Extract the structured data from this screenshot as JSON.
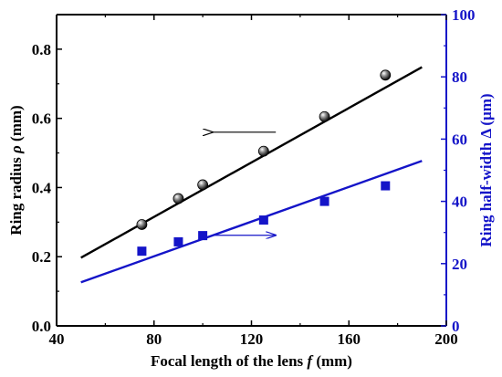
{
  "chart_data": {
    "type": "scatter",
    "title": "",
    "x_axis": {
      "label_parts": [
        "Focal length of the lens ",
        "f",
        " (mm)"
      ],
      "range": [
        40,
        200
      ],
      "ticks": [
        40,
        80,
        120,
        160,
        200
      ]
    },
    "y_left_axis": {
      "label_parts": [
        "Ring radius ",
        "ρ",
        " (mm)"
      ],
      "range": [
        0.0,
        0.9
      ],
      "ticks": [
        "0.0",
        "0.2",
        "0.4",
        "0.6",
        "0.8"
      ],
      "color": "#000000"
    },
    "y_right_axis": {
      "label": "Ring half-width Δ (μm)",
      "range": [
        0,
        100
      ],
      "ticks": [
        "0",
        "20",
        "40",
        "60",
        "80",
        "100"
      ],
      "color": "#1414c8"
    },
    "series": [
      {
        "axis": "left",
        "marker": "sphere",
        "color": "#000000",
        "points": [
          [
            75,
            0.293
          ],
          [
            90,
            0.368
          ],
          [
            100,
            0.408
          ],
          [
            125,
            0.505
          ],
          [
            150,
            0.605
          ],
          [
            175,
            0.725
          ]
        ],
        "fit_line": [
          [
            50,
            0.197
          ],
          [
            190,
            0.748
          ]
        ]
      },
      {
        "axis": "right",
        "marker": "square",
        "color": "#1414c8",
        "points": [
          [
            75,
            24
          ],
          [
            90,
            27
          ],
          [
            100,
            29
          ],
          [
            125,
            34
          ],
          [
            150,
            40
          ],
          [
            175,
            45
          ]
        ],
        "fit_line": [
          [
            50,
            14
          ],
          [
            190,
            53
          ]
        ]
      }
    ],
    "annotations": [
      {
        "type": "arrow",
        "direction": "left",
        "color": "#000000",
        "from": [
          130,
          0.56
        ],
        "to": [
          104,
          0.56
        ]
      },
      {
        "type": "arrow",
        "direction": "right",
        "color": "#1414c8",
        "from": [
          104,
          0.262
        ],
        "to": [
          130,
          0.262
        ]
      }
    ]
  }
}
